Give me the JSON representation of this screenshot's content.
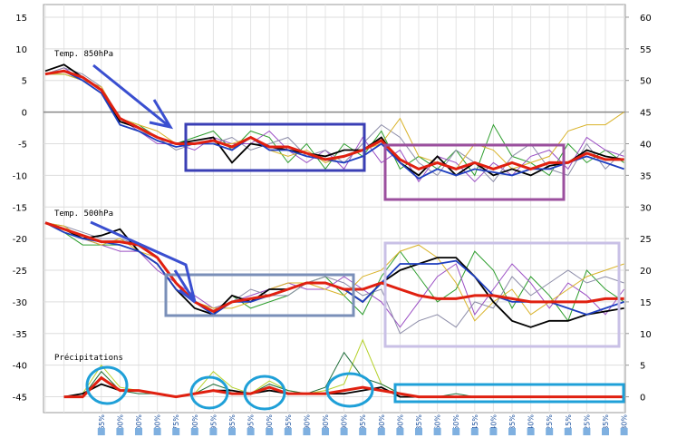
{
  "chart_data": {
    "type": "line",
    "categories": [
      null,
      null,
      null,
      "65%",
      "100%",
      "100%",
      "100%",
      "75%",
      "100%",
      "95%",
      "85%",
      "95%",
      "100%",
      "95%",
      "90%",
      "90%",
      "90%",
      "95%",
      "90%",
      "90%",
      "85%",
      "60%",
      "50%",
      "45%",
      "40%",
      "35%",
      "40%",
      "25%",
      "15%",
      "25%",
      "35%",
      "30%"
    ],
    "ylim": [
      -47.5,
      17
    ],
    "yticks": [
      15,
      10,
      5,
      0,
      -5,
      -10,
      -15,
      -20,
      -25,
      -30,
      -35,
      -40,
      -45
    ],
    "y2lim": [
      -2.5,
      62
    ],
    "y2ticks": [
      60,
      55,
      50,
      45,
      40,
      35,
      30,
      25,
      20,
      15,
      10,
      5,
      0
    ],
    "grid": true,
    "annotations": [
      "Temp. 850hPa",
      "Temp. 500hPa",
      "Précipitations"
    ],
    "series": [
      {
        "color": "#2e9e2e",
        "values": [
          6,
          6,
          5,
          3,
          -1,
          -2,
          -4,
          -5,
          -4,
          -3,
          -6,
          -3,
          -4,
          -8,
          -5,
          -9,
          -5,
          -7,
          -3,
          -9,
          -7,
          -9,
          -6,
          -10,
          -2,
          -7,
          -8,
          -10,
          -5,
          -8,
          -6,
          -8
        ]
      },
      {
        "color": "#9b4fc4",
        "values": [
          6,
          7,
          5,
          4,
          -1,
          -3,
          -5,
          -5,
          -6,
          -4,
          -5,
          -5,
          -3,
          -6,
          -8,
          -6,
          -9,
          -4,
          -8,
          -6,
          -11,
          -7,
          -8,
          -11,
          -8,
          -10,
          -7,
          -6,
          -9,
          -4,
          -6,
          -7
        ]
      },
      {
        "color": "#8c8ca8",
        "values": [
          6,
          7,
          6,
          4,
          -2,
          -3,
          -4,
          -6,
          -5,
          -5,
          -4,
          -6,
          -5,
          -4,
          -7,
          -6,
          -8,
          -5,
          -2,
          -4,
          -8,
          -10,
          -6,
          -8,
          -11,
          -7,
          -5,
          -9,
          -10,
          -5,
          -9,
          -6
        ]
      },
      {
        "color": "#d9b32a",
        "values": [
          6,
          6,
          5,
          4,
          -1,
          -2,
          -3,
          -5,
          -5,
          -5,
          -5,
          -4,
          -6,
          -7,
          -6,
          -8,
          -7,
          -6,
          -5,
          -1,
          -7,
          -8,
          -9,
          -5,
          -6,
          -9,
          -8,
          -7,
          -3,
          -2,
          -2,
          0
        ]
      },
      {
        "color": "#000000",
        "values": [
          6.5,
          7.5,
          5.5,
          3.5,
          -1.5,
          -2.5,
          -4,
          -5,
          -4.5,
          -4,
          -8,
          -5,
          -5.5,
          -6,
          -6.5,
          -7,
          -6,
          -6,
          -4,
          -8,
          -10,
          -7,
          -10,
          -8,
          -10,
          -9,
          -10,
          -8.5,
          -8,
          -6,
          -7,
          -7.5
        ]
      },
      {
        "color": "#1f3fbf",
        "values": [
          6,
          6.5,
          5,
          3,
          -2,
          -3,
          -4.5,
          -5.5,
          -5,
          -5,
          -6,
          -4,
          -6,
          -6,
          -7,
          -7.5,
          -8,
          -7,
          -5,
          -8,
          -10.5,
          -9,
          -10,
          -9,
          -9.5,
          -10,
          -9,
          -9,
          -8,
          -7,
          -8,
          -9
        ]
      },
      {
        "color": "#e02010",
        "values": [
          6,
          6.5,
          5.5,
          3.5,
          -1,
          -2.5,
          -4,
          -5,
          -5,
          -4.5,
          -5.5,
          -4,
          -5.5,
          -5.5,
          -6.5,
          -7.5,
          -7,
          -6,
          -4.5,
          -7.5,
          -9,
          -8,
          -9,
          -8,
          -9,
          -8,
          -9,
          -8,
          -8,
          -6.5,
          -7.5,
          -7.5
        ]
      },
      {
        "color": "#2e9e2e",
        "values": [
          -17.5,
          -19,
          -21,
          -21,
          -21,
          -22,
          -24,
          -28,
          -31,
          -32,
          -29,
          -31,
          -30,
          -29,
          -27,
          -26,
          -29,
          -32,
          -26,
          -22,
          -26,
          -30,
          -28,
          -22,
          -25,
          -31,
          -26,
          -29,
          -33,
          -25,
          -28,
          -30
        ]
      },
      {
        "color": "#9b4fc4",
        "values": [
          -17.5,
          -19,
          -20,
          -21,
          -22,
          -22,
          -25,
          -27,
          -29,
          -31,
          -30,
          -29,
          -28,
          -27,
          -28,
          -28,
          -26,
          -28,
          -30,
          -34,
          -30,
          -26,
          -24,
          -32,
          -28,
          -24,
          -27,
          -31,
          -27,
          -29,
          -32,
          -28
        ]
      },
      {
        "color": "#8c8ca8",
        "values": [
          -17.5,
          -18,
          -19,
          -20,
          -20,
          -21,
          -23,
          -27,
          -30,
          -31,
          -30,
          -28,
          -29,
          -29,
          -27,
          -26,
          -27,
          -29,
          -28,
          -35,
          -33,
          -32,
          -34,
          -30,
          -31,
          -26,
          -29,
          -27,
          -25,
          -27,
          -26,
          -27
        ]
      },
      {
        "color": "#d9b32a",
        "values": [
          -17.5,
          -18,
          -20,
          -21,
          -20,
          -22,
          -23,
          -27,
          -30,
          -31,
          -31,
          -30,
          -28,
          -27,
          -27,
          -28,
          -29,
          -26,
          -25,
          -22,
          -21,
          -23,
          -27,
          -33,
          -30,
          -28,
          -32,
          -30,
          -28,
          -26,
          -25,
          -24
        ]
      },
      {
        "color": "#000000",
        "values": [
          -17.5,
          -18.5,
          -20,
          -19.5,
          -18.5,
          -22,
          -24,
          -28,
          -31,
          -32,
          -29,
          -30,
          -28,
          -28,
          -27,
          -27,
          -28,
          -30,
          -27,
          -25,
          -24,
          -23,
          -23,
          -26,
          -30,
          -33,
          -34,
          -33,
          -33,
          -32,
          -31.5,
          -31
        ]
      },
      {
        "color": "#1f3fbf",
        "values": [
          -17.5,
          -19,
          -20,
          -20.5,
          -21,
          -22,
          -24,
          -28,
          -30,
          -32,
          -30,
          -30,
          -29,
          -28,
          -27,
          -27,
          -28,
          -30,
          -27,
          -24,
          -24,
          -24,
          -23.5,
          -26,
          -29,
          -30,
          -30,
          -30,
          -31,
          -32,
          -31,
          -30
        ]
      },
      {
        "color": "#e02010",
        "values": [
          -17.5,
          -18.5,
          -19.5,
          -20.5,
          -20.5,
          -21,
          -23,
          -27,
          -30,
          -31.5,
          -30,
          -29.5,
          -29,
          -28,
          -27,
          -27,
          -28,
          -28,
          -27,
          -28,
          -29,
          -29.5,
          -29.5,
          -29,
          -29,
          -29.5,
          -30,
          -30,
          -30,
          -30,
          -29.5,
          -29.5
        ]
      },
      {
        "color": "#b5d12a",
        "axis": "y2",
        "values": [
          null,
          0,
          0.5,
          5,
          1.5,
          1,
          0.5,
          0,
          0.5,
          4,
          1.5,
          0.5,
          2.5,
          1,
          0.5,
          1,
          2,
          9,
          2,
          0.5,
          0,
          0,
          0,
          0,
          0,
          0,
          0,
          0,
          0,
          0,
          0,
          0
        ]
      },
      {
        "color": "#1f6e3a",
        "axis": "y2",
        "values": [
          null,
          0,
          0,
          4,
          1,
          0.5,
          0.5,
          0,
          0.5,
          2,
          1,
          0.5,
          2,
          1,
          0.5,
          1.5,
          7,
          3,
          2,
          0.5,
          0,
          0,
          0.5,
          0,
          0,
          0,
          0,
          0,
          0,
          0,
          0,
          0
        ]
      },
      {
        "color": "#000000",
        "axis": "y2",
        "values": [
          null,
          0,
          0.5,
          2,
          1,
          1,
          0.5,
          0,
          0.5,
          1,
          1,
          0.5,
          1,
          0.5,
          0.5,
          0.5,
          0.5,
          1,
          1.5,
          0,
          0,
          0,
          0,
          0,
          0,
          0,
          0,
          0,
          0,
          0,
          0,
          0
        ]
      },
      {
        "color": "#e02010",
        "axis": "y2",
        "values": [
          null,
          0,
          0,
          3,
          1,
          1,
          0.5,
          0,
          0.5,
          1,
          0.5,
          0.5,
          1.5,
          0.5,
          0.5,
          0.5,
          1,
          1.5,
          1,
          0.5,
          0,
          0,
          0,
          0,
          0,
          0,
          0,
          0,
          0,
          0,
          0,
          0
        ]
      }
    ]
  }
}
